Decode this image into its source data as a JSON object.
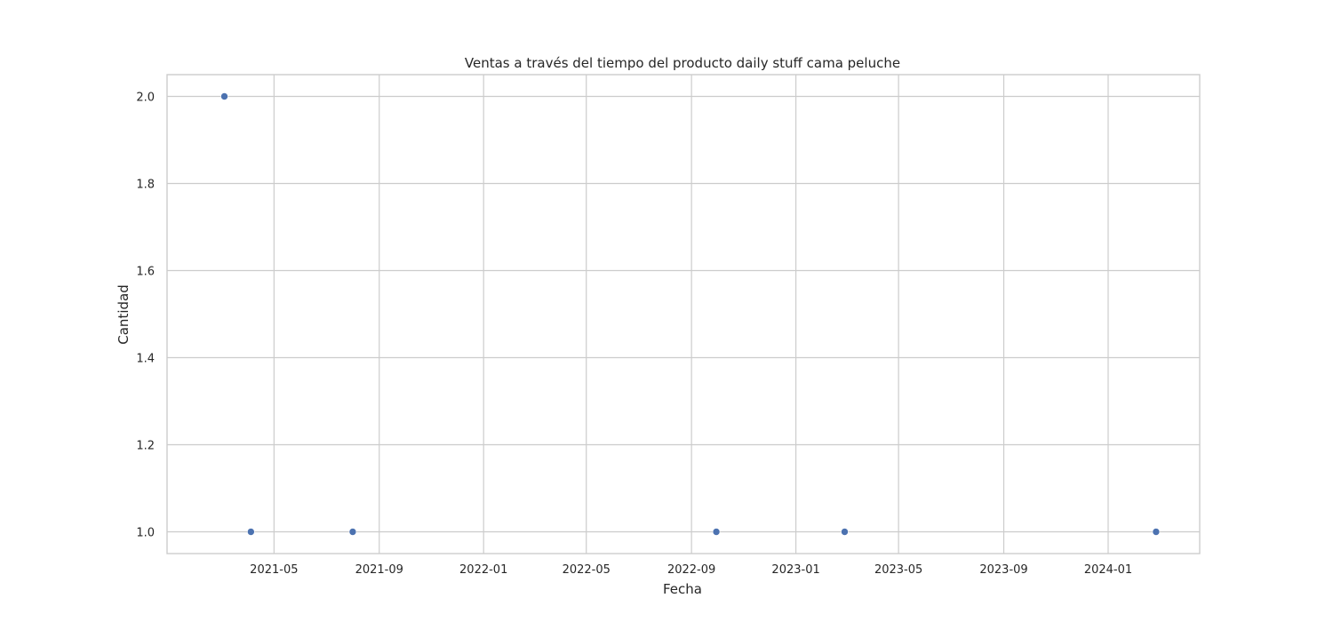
{
  "chart_data": {
    "type": "scatter",
    "title": "Ventas a través del tiempo del producto daily stuff cama peluche",
    "xlabel": "Fecha",
    "ylabel": "Cantidad",
    "x_is_date": true,
    "xlim": [
      "2020-12-27",
      "2024-04-17"
    ],
    "ylim": [
      0.95,
      2.05
    ],
    "x_ticks": [
      "2021-05-01",
      "2021-09-01",
      "2022-01-01",
      "2022-05-01",
      "2022-09-01",
      "2023-01-01",
      "2023-05-01",
      "2023-09-01",
      "2024-01-01"
    ],
    "x_tick_labels": [
      "2021-05",
      "2021-09",
      "2022-01",
      "2022-05",
      "2022-09",
      "2023-01",
      "2023-05",
      "2023-09",
      "2024-01"
    ],
    "y_ticks": [
      1.0,
      1.2,
      1.4,
      1.6,
      1.8,
      2.0
    ],
    "y_tick_labels": [
      "1.0",
      "1.2",
      "1.4",
      "1.6",
      "1.8",
      "2.0"
    ],
    "grid": true,
    "marker_color": "#4c72b0",
    "points": [
      {
        "x": "2021-03-04",
        "y": 2
      },
      {
        "x": "2021-04-04",
        "y": 1
      },
      {
        "x": "2021-08-01",
        "y": 1
      },
      {
        "x": "2022-09-30",
        "y": 1
      },
      {
        "x": "2023-02-27",
        "y": 1
      },
      {
        "x": "2024-02-26",
        "y": 1
      }
    ]
  }
}
